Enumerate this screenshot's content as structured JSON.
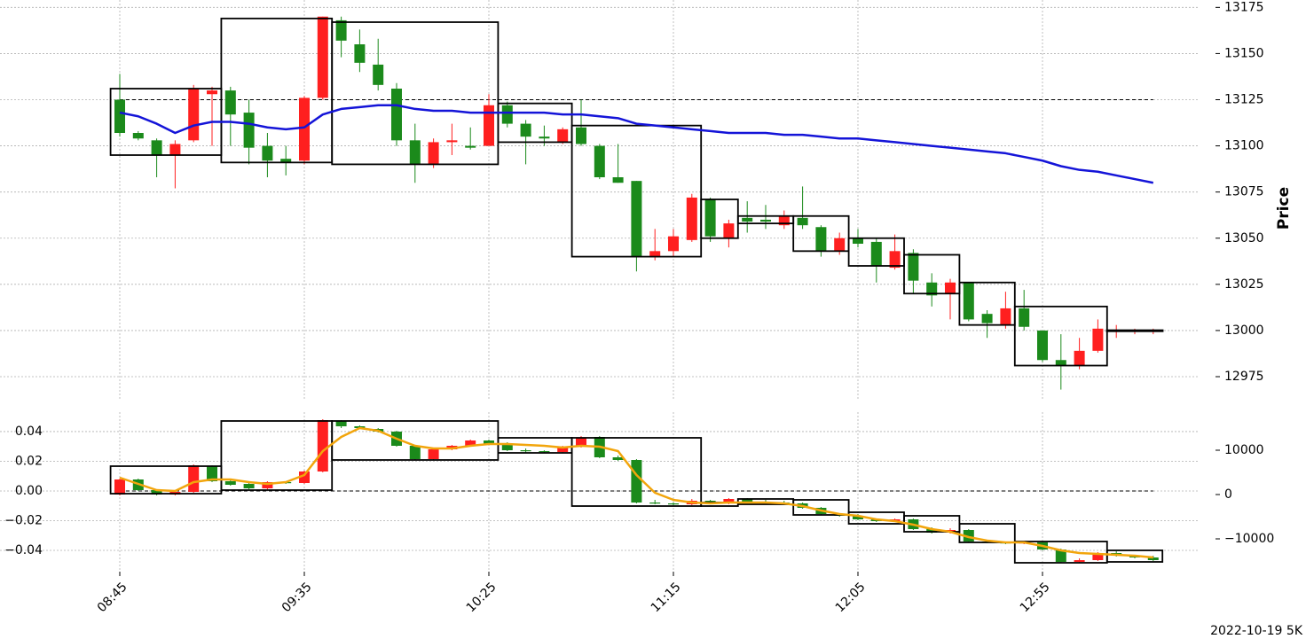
{
  "chart_data": [
    {
      "type": "candlestick",
      "ylabel": "Price",
      "ylim": [
        12963,
        13179
      ],
      "yticks": [
        12975,
        13000,
        13025,
        13050,
        13075,
        13100,
        13125,
        13150,
        13175
      ],
      "grid": true,
      "up_color": "#ff1f1f",
      "down_color": "#1b8a1b",
      "ohlc": {
        "open": [
          13125,
          13107,
          13103,
          13095,
          13103,
          13128,
          13130,
          13118,
          13100,
          13093,
          13092,
          13126,
          13168,
          13155,
          13144,
          13131,
          13103,
          13090,
          13102,
          13100,
          13100,
          13122,
          13112,
          13105,
          13102,
          13110,
          13100,
          13083,
          13081,
          13040,
          13043,
          13049,
          13071,
          13050,
          13061,
          13060,
          13057,
          13061,
          13056,
          13043,
          13050,
          13048,
          13034,
          13042,
          13026,
          13020,
          13026,
          13009,
          13003,
          13012,
          13000,
          12984,
          12981,
          12989,
          13000,
          13000,
          13000
        ],
        "high": [
          13139,
          13108,
          13104,
          13103,
          13133,
          13132,
          13132,
          13125,
          13107,
          13100,
          13127,
          13170,
          13170,
          13163,
          13158,
          13134,
          13112,
          13104,
          13112,
          13110,
          13128,
          13124,
          13114,
          13111,
          13110,
          13125,
          13101,
          13101,
          13081,
          13055,
          13055,
          13074,
          13072,
          13060,
          13070,
          13068,
          13065,
          13078,
          13057,
          13053,
          13055,
          13050,
          13052,
          13044,
          13031,
          13028,
          13026,
          13011,
          13021,
          13022,
          13000,
          12998,
          12996,
          13006,
          13003,
          13001,
          13001
        ],
        "low": [
          13105,
          13103,
          13083,
          13077,
          13102,
          13100,
          13100,
          13090,
          13083,
          13084,
          13090,
          13125,
          13148,
          13140,
          13130,
          13100,
          13080,
          13088,
          13095,
          13098,
          13100,
          13110,
          13090,
          13100,
          13101,
          13100,
          13082,
          13080,
          13032,
          13038,
          13040,
          13048,
          13048,
          13045,
          13053,
          13055,
          13055,
          13055,
          13040,
          13041,
          13045,
          13026,
          13033,
          13020,
          13013,
          13006,
          13005,
          12996,
          13001,
          13000,
          12983,
          12968,
          12979,
          12988,
          12996,
          12998,
          12998
        ],
        "close": [
          13107,
          13104,
          13095,
          13101,
          13131,
          13130,
          13117,
          13099,
          13092,
          13091,
          13126,
          13170,
          13157,
          13145,
          13133,
          13103,
          13090,
          13102,
          13103,
          13099,
          13122,
          13112,
          13105,
          13104,
          13109,
          13101,
          13083,
          13080,
          13040,
          13043,
          13051,
          13072,
          13051,
          13058,
          13059,
          13059,
          13062,
          13057,
          13043,
          13050,
          13047,
          13035,
          13043,
          13027,
          13019,
          13026,
          13006,
          13004,
          13012,
          13002,
          12984,
          12981,
          12989,
          13001,
          13000,
          13000,
          13000
        ]
      },
      "lines": [
        {
          "color": "#1414d8",
          "values": [
            13118,
            13116,
            13112,
            13107,
            13111,
            13113,
            13113,
            13112,
            13110,
            13109,
            13110,
            13117,
            13120,
            13121,
            13122,
            13122,
            13120,
            13119,
            13119,
            13118,
            13118,
            13118,
            13118,
            13118,
            13117,
            13117,
            13116,
            13115,
            13112,
            13111,
            13110,
            13109,
            13108,
            13107,
            13107,
            13107,
            13106,
            13106,
            13105,
            13104,
            13104,
            13103,
            13102,
            13101,
            13100,
            13099,
            13098,
            13097,
            13096,
            13094,
            13092,
            13089,
            13087,
            13086,
            13084,
            13082,
            13080
          ]
        }
      ],
      "hline": 13125,
      "boxes": [
        {
          "from": 0,
          "to": 5,
          "low": 13095,
          "high": 13131
        },
        {
          "from": 6,
          "to": 11,
          "low": 13091,
          "high": 13169
        },
        {
          "from": 12,
          "to": 20,
          "low": 13090,
          "high": 13167
        },
        {
          "from": 21,
          "to": 24,
          "low": 13102,
          "high": 13123
        },
        {
          "from": 25,
          "to": 31,
          "low": 13040,
          "high": 13111
        },
        {
          "from": 32,
          "to": 33,
          "low": 13050,
          "high": 13071
        },
        {
          "from": 34,
          "to": 36,
          "low": 13058,
          "high": 13062
        },
        {
          "from": 37,
          "to": 39,
          "low": 13043,
          "high": 13062
        },
        {
          "from": 40,
          "to": 42,
          "low": 13035,
          "high": 13050
        },
        {
          "from": 43,
          "to": 45,
          "low": 13020,
          "high": 13041
        },
        {
          "from": 46,
          "to": 48,
          "low": 13003,
          "high": 13026
        },
        {
          "from": 49,
          "to": 53,
          "low": 12981,
          "high": 13013
        },
        {
          "from": 54,
          "to": 56,
          "low": 13000,
          "high": 13000
        }
      ]
    },
    {
      "type": "candlestick",
      "footnote": "2022-10-19 5K",
      "categories": [
        "08:45",
        null,
        null,
        null,
        null,
        null,
        null,
        null,
        null,
        null,
        "09:35",
        null,
        null,
        null,
        null,
        null,
        null,
        null,
        null,
        null,
        "10:25",
        null,
        null,
        null,
        null,
        null,
        null,
        null,
        null,
        null,
        "11:15",
        null,
        null,
        null,
        null,
        null,
        null,
        null,
        null,
        null,
        "12:05",
        null,
        null,
        null,
        null,
        null,
        null,
        null,
        null,
        null,
        "12:55",
        null,
        null,
        null,
        null,
        null,
        null
      ],
      "ylim": [
        -0.0543,
        0.0531
      ],
      "yticks": [
        {
          "value": -0.04,
          "label": "−0.04"
        },
        {
          "value": -0.02,
          "label": "−0.02"
        },
        {
          "value": 0,
          "label": "0.00"
        },
        0.02,
        0.04
      ],
      "y2lim": [
        -17400,
        18600
      ],
      "y2ticks": [
        {
          "value": -10000,
          "label": "−10000"
        },
        0,
        10000
      ],
      "grid": true,
      "up_color": "#ff1f1f",
      "down_color": "#1b8a1b",
      "ohlc": {
        "axis": "y2",
        "open": [
          0,
          3400,
          1000,
          0,
          600,
          6400,
          3000,
          2400,
          1400,
          2800,
          2600,
          5200,
          16600,
          15400,
          14800,
          14200,
          11000,
          8000,
          10200,
          11000,
          12200,
          11400,
          10000,
          9800,
          9600,
          10800,
          13000,
          8400,
          7800,
          -1800,
          -2000,
          -2200,
          -1400,
          -2000,
          -1000,
          -1600,
          -1800,
          -2000,
          -3000,
          -4400,
          -4800,
          -5600,
          -6000,
          -5600,
          -7800,
          -8600,
          -8000,
          -10600,
          -10800,
          -11000,
          -10800,
          -12400,
          -15200,
          -14800,
          -13200,
          -13800,
          -14200
        ],
        "high": [
          3600,
          3600,
          1200,
          800,
          6800,
          6600,
          3400,
          2600,
          3000,
          3000,
          5400,
          17000,
          16800,
          15600,
          15000,
          14400,
          11200,
          10400,
          11200,
          12400,
          12400,
          11800,
          10400,
          10000,
          11000,
          13200,
          13200,
          8800,
          8000,
          -1200,
          -1800,
          -1000,
          -1200,
          -800,
          -800,
          -1200,
          -1400,
          -1800,
          -2800,
          -4200,
          -4400,
          -5400,
          -5400,
          -5400,
          -7400,
          -7600,
          -7800,
          -10200,
          -10600,
          -10600,
          -10600,
          -12200,
          -14400,
          -13000,
          -12800,
          -13600,
          -13800
        ],
        "low": [
          -200,
          800,
          -200,
          -200,
          400,
          2800,
          2000,
          1200,
          1200,
          2400,
          2400,
          5000,
          15000,
          14800,
          14000,
          10800,
          7800,
          7800,
          10000,
          10800,
          11200,
          9800,
          9400,
          9400,
          9400,
          10600,
          8200,
          7600,
          -2000,
          -2200,
          -2400,
          -2400,
          -2200,
          -2200,
          -1800,
          -2000,
          -2200,
          -3200,
          -4600,
          -5000,
          -5800,
          -6200,
          -6200,
          -8000,
          -8800,
          -8800,
          -10800,
          -11000,
          -11200,
          -11200,
          -12600,
          -15400,
          -15400,
          -15000,
          -14000,
          -14400,
          -15000
        ],
        "close": [
          3400,
          1000,
          0,
          600,
          6600,
          3000,
          2200,
          1400,
          2800,
          2600,
          5200,
          16800,
          15400,
          15000,
          14200,
          11000,
          8000,
          10200,
          11000,
          12200,
          11400,
          10000,
          9800,
          9600,
          10800,
          12800,
          8400,
          7800,
          -1800,
          -2000,
          -2200,
          -1400,
          -2000,
          -1000,
          -1600,
          -1800,
          -2000,
          -3000,
          -4400,
          -4800,
          -5600,
          -6000,
          -5600,
          -7800,
          -8600,
          -8000,
          -10600,
          -10800,
          -11000,
          -10800,
          -12400,
          -15200,
          -14800,
          -13200,
          -13800,
          -14200,
          -14800
        ]
      },
      "lines": [
        {
          "color": "#f2a50c",
          "axis": "y2",
          "values": [
            3800,
            2400,
            1000,
            800,
            2800,
            3400,
            3400,
            2800,
            2400,
            2800,
            4400,
            9800,
            13000,
            15000,
            14400,
            12600,
            11000,
            10400,
            10400,
            11000,
            11400,
            11400,
            11200,
            11000,
            10600,
            11000,
            10800,
            9800,
            4400,
            400,
            -1200,
            -1800,
            -2000,
            -1800,
            -1800,
            -1800,
            -2000,
            -2600,
            -3600,
            -4400,
            -4800,
            -5600,
            -6000,
            -6800,
            -7800,
            -8400,
            -9600,
            -10400,
            -10800,
            -10800,
            -11600,
            -12600,
            -13200,
            -13400,
            -13600,
            -13800,
            -14200
          ]
        }
      ],
      "hline": 0,
      "boxes": [
        {
          "from": 0,
          "to": 5,
          "low": 200,
          "high": 6400
        },
        {
          "from": 6,
          "to": 11,
          "low": 1000,
          "high": 16600
        },
        {
          "from": 12,
          "to": 20,
          "low": 7800,
          "high": 16600
        },
        {
          "from": 21,
          "to": 24,
          "low": 9400,
          "high": 12800
        },
        {
          "from": 25,
          "to": 31,
          "low": -2600,
          "high": 12800
        },
        {
          "from": 32,
          "to": 33,
          "low": -2600,
          "high": -1800
        },
        {
          "from": 34,
          "to": 36,
          "low": -2200,
          "high": -1000
        },
        {
          "from": 37,
          "to": 39,
          "low": -4600,
          "high": -1200
        },
        {
          "from": 40,
          "to": 42,
          "low": -6600,
          "high": -4000
        },
        {
          "from": 43,
          "to": 45,
          "low": -8400,
          "high": -4800
        },
        {
          "from": 46,
          "to": 48,
          "low": -10800,
          "high": -6600
        },
        {
          "from": 49,
          "to": 53,
          "low": -15400,
          "high": -10600
        },
        {
          "from": 54,
          "to": 56,
          "low": -15200,
          "high": -12600
        }
      ]
    }
  ]
}
